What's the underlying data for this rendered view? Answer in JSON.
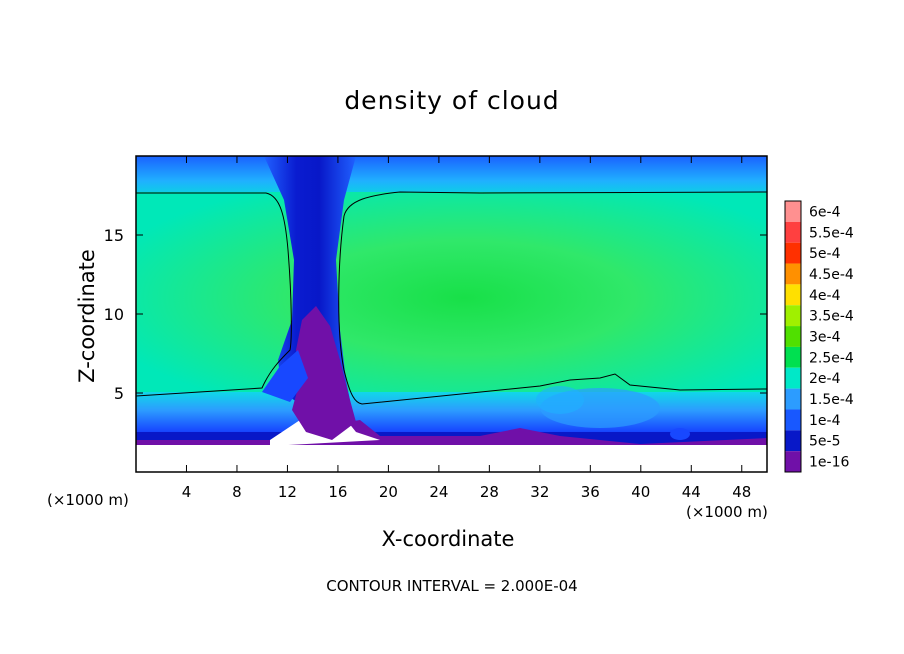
{
  "chart_data": {
    "type": "heatmap",
    "title": "density of cloud",
    "xlabel": "X-coordinate",
    "ylabel": "Z-coordinate",
    "x_unit": "(×1000 m)",
    "x_unit_right": "(×1000 m)",
    "xlim": [
      0,
      50
    ],
    "ylim": [
      0,
      20
    ],
    "x_ticks": [
      4,
      8,
      12,
      16,
      20,
      24,
      28,
      32,
      36,
      40,
      44,
      48
    ],
    "y_ticks": [
      5,
      10,
      15
    ],
    "footer": "CONTOUR INTERVAL = 2.000E-04",
    "colorbar": {
      "labels": [
        "6e-4",
        "5.5e-4",
        "5e-4",
        "4.5e-4",
        "4e-4",
        "3.5e-4",
        "3e-4",
        "2.5e-4",
        "2e-4",
        "1.5e-4",
        "1e-4",
        "5e-5",
        "1e-16"
      ],
      "colors": [
        "#ff9090",
        "#ff4040",
        "#ff3000",
        "#ff9000",
        "#ffe000",
        "#a0f000",
        "#50e000",
        "#00e050",
        "#00e8c8",
        "#2c9cff",
        "#1858ff",
        "#0818c8",
        "#7010a8"
      ]
    },
    "regions": {
      "cloud_top_z": 17.6,
      "cloud_base_z": 5.0,
      "core_max_density": "3e-4",
      "core_z_range": [
        8,
        13
      ],
      "updraft_gap_x": [
        11.5,
        16.5
      ],
      "ground_clear_below_z": 1.8
    }
  }
}
